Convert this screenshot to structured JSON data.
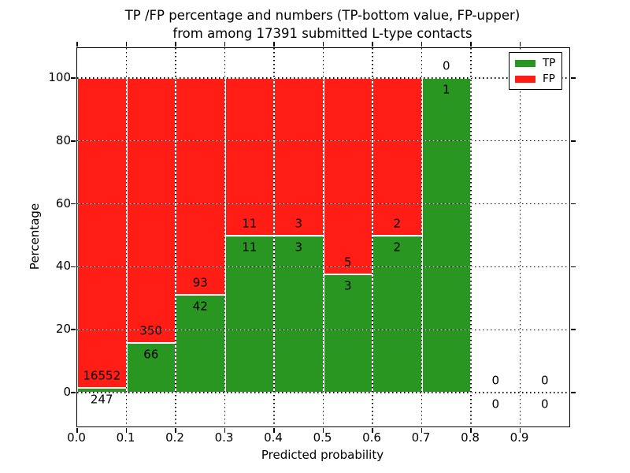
{
  "title": {
    "line1": "TP /FP percentage and numbers (TP-bottom value, FP-upper)",
    "line2": "from among 17391 submitted L-type contacts"
  },
  "chart_data": {
    "type": "bar",
    "stacked": true,
    "title": "TP /FP percentage and numbers (TP-bottom value, FP-upper) from among 17391 submitted L-type contacts",
    "total_contacts": 17391,
    "xlabel": "Predicted probability",
    "ylabel": "Percentage",
    "xlim": [
      0.0,
      1.0
    ],
    "ylim": [
      -11,
      110
    ],
    "grid": true,
    "bin_width": 0.1,
    "x_ticks": [
      "0.0",
      "0.1",
      "0.2",
      "0.3",
      "0.4",
      "0.5",
      "0.6",
      "0.7",
      "0.8",
      "0.9"
    ],
    "y_ticks": [
      0,
      20,
      40,
      60,
      80,
      100
    ],
    "categories": [
      "0.0-0.1",
      "0.1-0.2",
      "0.2-0.3",
      "0.3-0.4",
      "0.4-0.5",
      "0.5-0.6",
      "0.6-0.7",
      "0.7-0.8",
      "0.8-0.9",
      "0.9-1.0"
    ],
    "series": [
      {
        "name": "TP",
        "color": "#2a9622",
        "counts": [
          247,
          66,
          42,
          11,
          3,
          3,
          2,
          1,
          0,
          0
        ]
      },
      {
        "name": "FP",
        "color": "#ff1d15",
        "counts": [
          16552,
          350,
          93,
          11,
          3,
          5,
          2,
          0,
          0,
          0
        ]
      }
    ],
    "tp_percent": [
      1.47,
      15.87,
      31.11,
      50.0,
      50.0,
      37.5,
      50.0,
      100.0,
      null,
      null
    ],
    "legend": {
      "position": "upper right",
      "entries": [
        {
          "label": "TP",
          "color": "#2a9622"
        },
        {
          "label": "FP",
          "color": "#ff1d15"
        }
      ]
    }
  }
}
